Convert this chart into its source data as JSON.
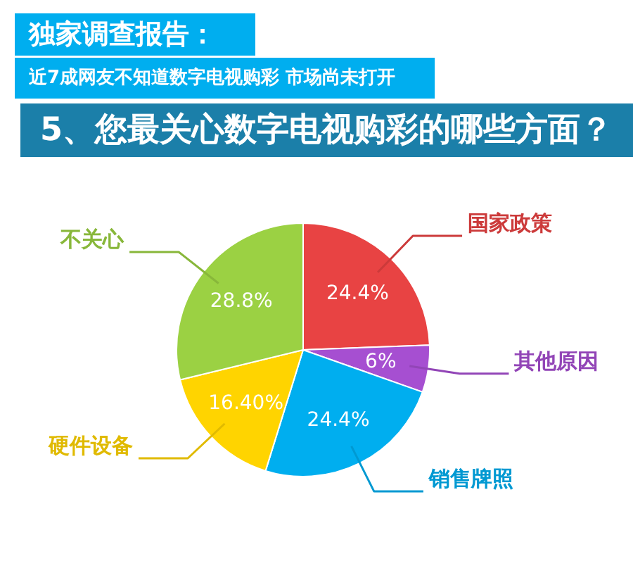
{
  "chart_data": {
    "type": "pie",
    "title": "独家调查报告：",
    "subtitle": "近7成网友不知道数字电视购彩 市场尚未打开",
    "annotations": [
      "5、您最关心数字电视购彩的哪些方面？"
    ],
    "categories": [
      "国家政策",
      "其他原因",
      "销售牌照",
      "硬件设备",
      "不关心"
    ],
    "values": [
      24.4,
      6,
      24.4,
      16.4,
      28.8
    ],
    "colors": [
      "#e84343",
      "#a64fd1",
      "#00aeef",
      "#ffd400",
      "#9bd143"
    ],
    "value_labels": [
      "24.4%",
      "6%",
      "24.4%",
      "16.40%",
      "28.8%"
    ]
  }
}
